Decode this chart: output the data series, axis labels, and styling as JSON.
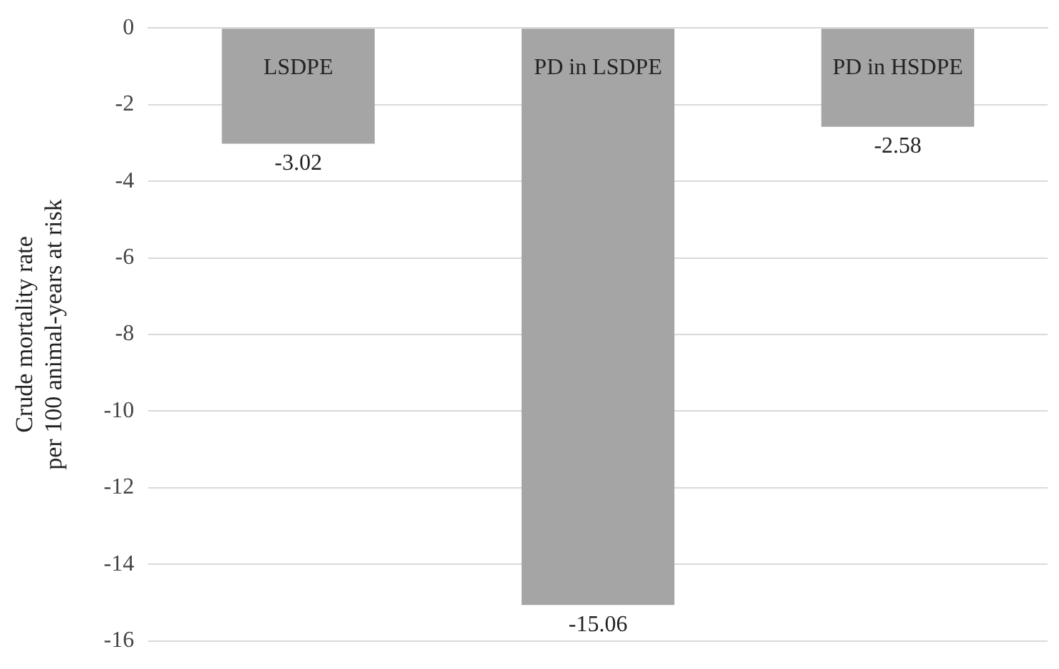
{
  "chart_data": {
    "type": "bar",
    "ylabel": "Crude mortality rate\nper 100 animal-years at risk",
    "categories": [
      "LSDPE",
      "PD in LSDPE",
      "PD in HSDPE"
    ],
    "series": [
      {
        "color": "#a5a5a5",
        "values": [
          -3.02,
          -15.06,
          -2.58
        ]
      }
    ],
    "ylim": [
      -16,
      0
    ],
    "yticks": [
      -16,
      -14,
      -12,
      -10,
      -8,
      -6,
      -4,
      -2,
      0
    ],
    "grid": "y",
    "legend": false,
    "data_labels": true
  }
}
